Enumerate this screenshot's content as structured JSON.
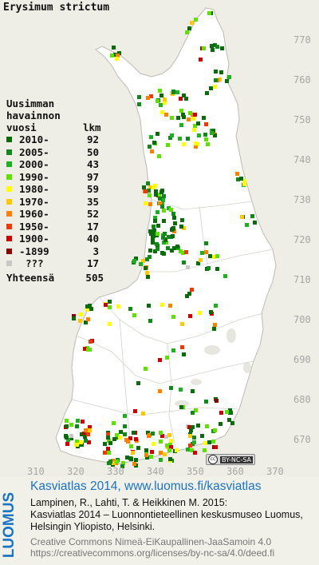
{
  "title": "Erysimum strictum",
  "legend": {
    "header": [
      "Uusimman",
      "havainnon",
      "vuosi"
    ],
    "count_header": "lkm",
    "items": [
      {
        "label": "2010-",
        "count": "92",
        "color": "#0a6b0a"
      },
      {
        "label": "2005-",
        "count": "50",
        "color": "#11881a"
      },
      {
        "label": "2000-",
        "count": "43",
        "color": "#1fb01f"
      },
      {
        "label": "1990-",
        "count": "97",
        "color": "#5ee000"
      },
      {
        "label": "1980-",
        "count": "59",
        "color": "#ffff00"
      },
      {
        "label": "1970-",
        "count": "35",
        "color": "#ffc800"
      },
      {
        "label": "1960-",
        "count": "52",
        "color": "#ff7f00"
      },
      {
        "label": "1950-",
        "count": "17",
        "color": "#ee3a00"
      },
      {
        "label": "1900-",
        "count": "40",
        "color": "#cc0000"
      },
      {
        "label": "-1899",
        "count": "3",
        "color": "#880000"
      },
      {
        "label": "???",
        "count": "17",
        "color": "#c8c8c8"
      }
    ],
    "total_label": "Yhteensä",
    "total_count": "505"
  },
  "y_ticks": [
    "770",
    "760",
    "750",
    "740",
    "730",
    "720",
    "710",
    "700",
    "690",
    "680",
    "670"
  ],
  "x_ticks": [
    "310",
    "320",
    "330",
    "340",
    "350",
    "360",
    "370"
  ],
  "license_badge": "BY-NC-SA",
  "footer": {
    "logo": "LUOMUS",
    "line1": "Kasviatlas 2014, www.luomus.fi/kasviatlas",
    "line2": "Lampinen, R., Lahti, T. & Heikkinen M. 2015:",
    "line3": "Kasviatlas 2014 – Luonnontieteellinen keskusmuseo Luomus,",
    "line4": "Helsingin Yliopisto, Helsinki.",
    "line5": "Creative Commons Nimeä-EiKaupallinen-JaaSamoin 4.0",
    "line6": "https://creativecommons.org/licenses/by-nc-sa/4.0/deed.fi"
  }
}
